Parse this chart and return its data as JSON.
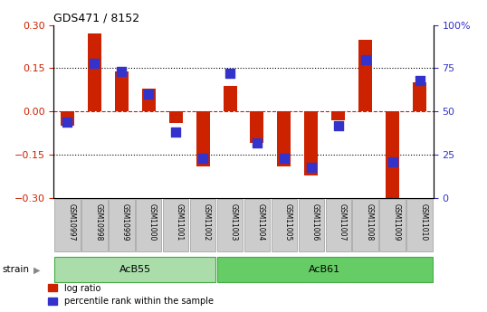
{
  "title": "GDS471 / 8152",
  "categories": [
    "GSM10997",
    "GSM10998",
    "GSM10999",
    "GSM11000",
    "GSM11001",
    "GSM11002",
    "GSM11003",
    "GSM11004",
    "GSM11005",
    "GSM11006",
    "GSM11007",
    "GSM11008",
    "GSM11009",
    "GSM11010"
  ],
  "log_ratio": [
    -0.05,
    0.27,
    0.14,
    0.08,
    -0.04,
    -0.19,
    0.09,
    -0.11,
    -0.19,
    -0.22,
    -0.03,
    0.25,
    -0.3,
    0.1
  ],
  "percentile_rank": [
    44,
    78,
    73,
    60,
    38,
    23,
    72,
    32,
    23,
    18,
    42,
    80,
    21,
    68
  ],
  "ylim_left": [
    -0.3,
    0.3
  ],
  "ylim_right": [
    0,
    100
  ],
  "yticks_left": [
    -0.3,
    -0.15,
    0.0,
    0.15,
    0.3
  ],
  "yticks_right": [
    0,
    25,
    50,
    75,
    100
  ],
  "ytick_labels_right": [
    "0",
    "25",
    "50",
    "75",
    "100%"
  ],
  "red_color": "#cc2200",
  "blue_color": "#3333cc",
  "group1_label": "AcB55",
  "group1_indices": [
    0,
    1,
    2,
    3,
    4,
    5
  ],
  "group2_label": "AcB61",
  "group2_indices": [
    6,
    7,
    8,
    9,
    10,
    11,
    12,
    13
  ],
  "strain_label": "strain",
  "legend_log_ratio": "log ratio",
  "legend_percentile": "percentile rank within the sample",
  "group_color1": "#aaddaa",
  "group_color2": "#66cc66",
  "tick_bg_color": "#cccccc",
  "bar_width": 0.5,
  "blue_marker_size": 60
}
